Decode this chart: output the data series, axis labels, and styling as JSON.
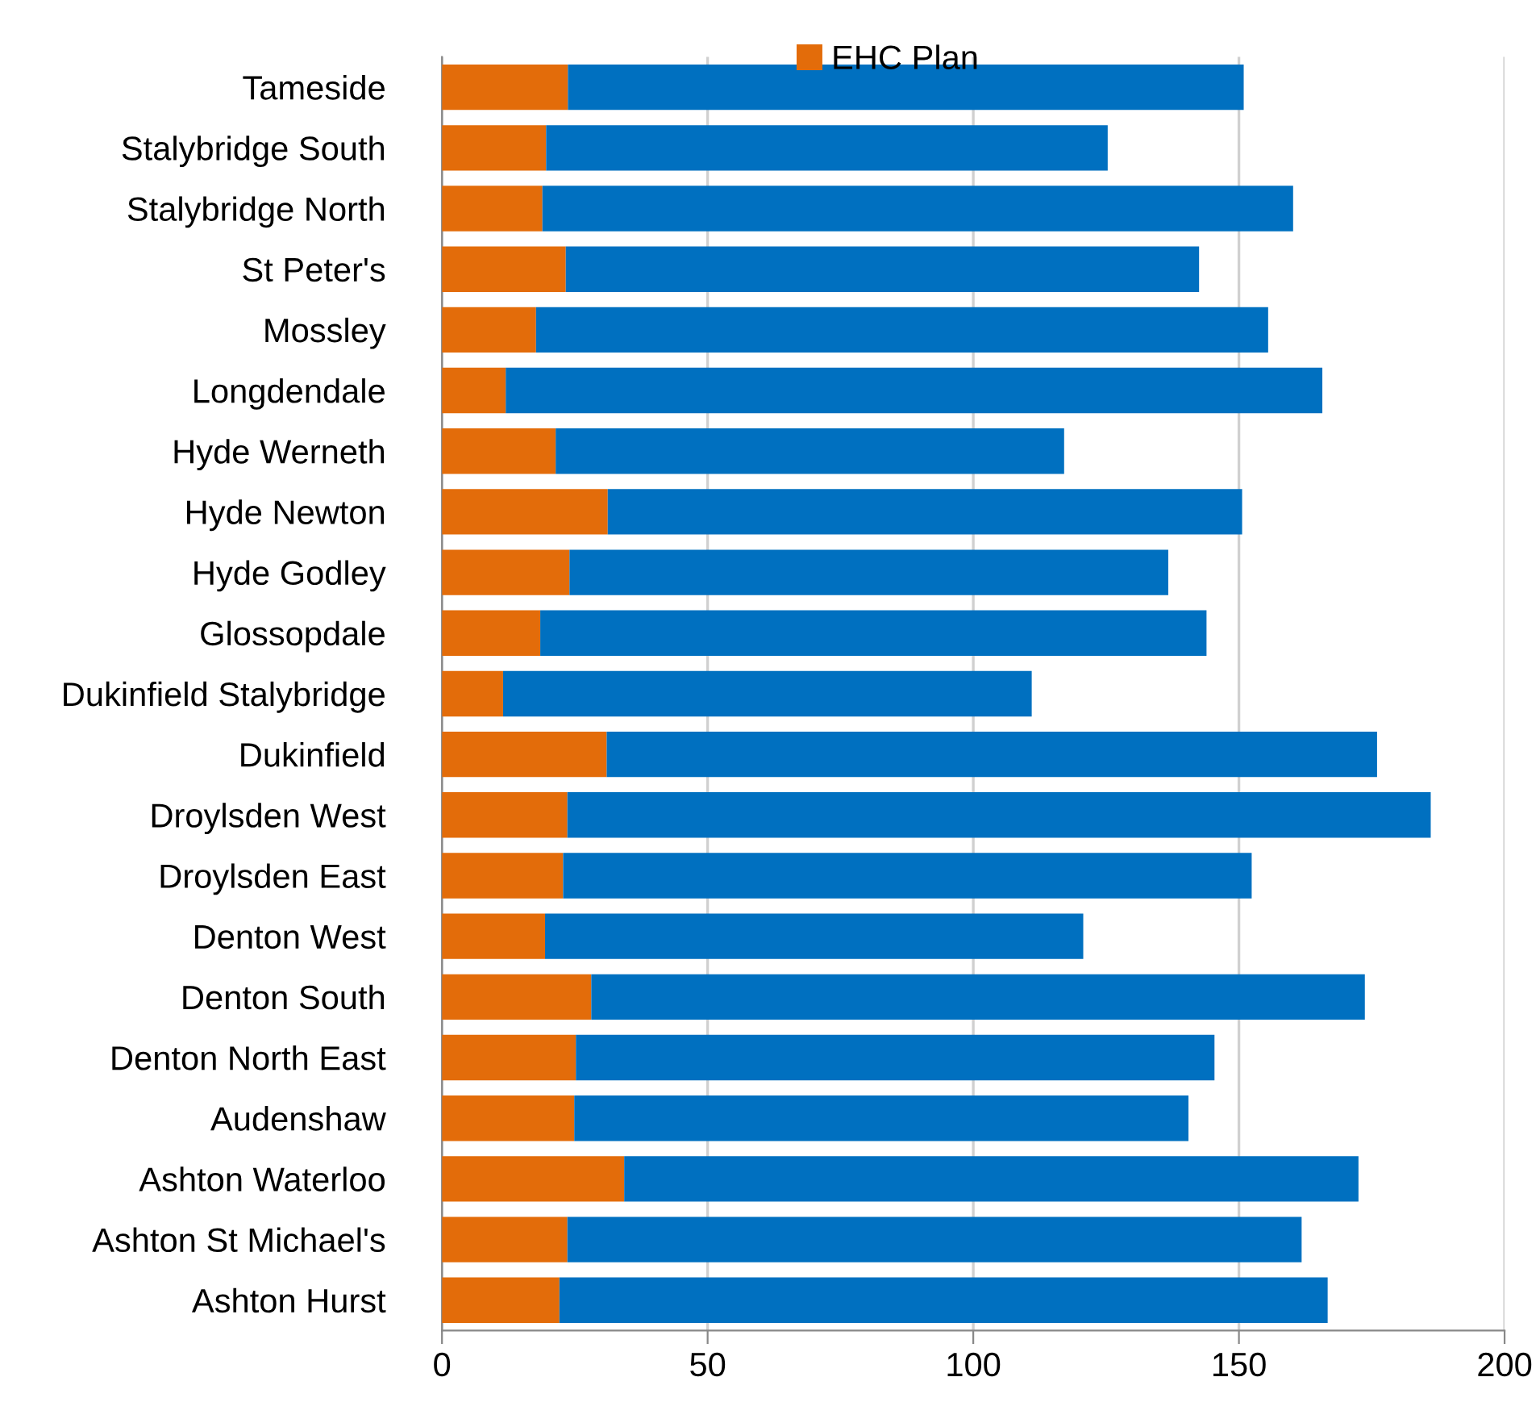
{
  "chart_data": {
    "type": "bar",
    "orientation": "horizontal",
    "stacked": true,
    "categories": [
      "Tameside",
      "Stalybridge South",
      "Stalybridge North",
      "St Peter's",
      "Mossley",
      "Longdendale",
      "Hyde Werneth",
      "Hyde Newton",
      "Hyde Godley",
      "Glossopdale",
      "Dukinfield Stalybridge",
      "Dukinfield",
      "Droylsden West",
      "Droylsden East",
      "Denton West",
      "Denton South",
      "Denton North East",
      "Audenshaw",
      "Ashton Waterloo",
      "Ashton St Michael's",
      "Ashton Hurst"
    ],
    "series": [
      {
        "name": "EHC Plan",
        "color": "#e36c0a",
        "values": [
          23.7,
          19.6,
          18.9,
          23.3,
          17.7,
          12.0,
          21.4,
          31.2,
          24.0,
          18.5,
          11.5,
          31.0,
          23.6,
          22.8,
          19.4,
          28.1,
          25.2,
          24.9,
          34.3,
          23.6,
          22.1
        ]
      },
      {
        "color": "#0070c0",
        "values": [
          127.2,
          105.7,
          141.3,
          119.2,
          137.8,
          153.7,
          95.7,
          119.4,
          112.7,
          125.4,
          99.5,
          145.0,
          162.5,
          129.6,
          101.3,
          145.6,
          120.2,
          115.6,
          138.2,
          138.2,
          144.6
        ]
      }
    ],
    "xlim": [
      0,
      200
    ],
    "xticks": [
      0,
      50,
      100,
      150,
      200
    ],
    "grid": "x",
    "legend": "top"
  }
}
